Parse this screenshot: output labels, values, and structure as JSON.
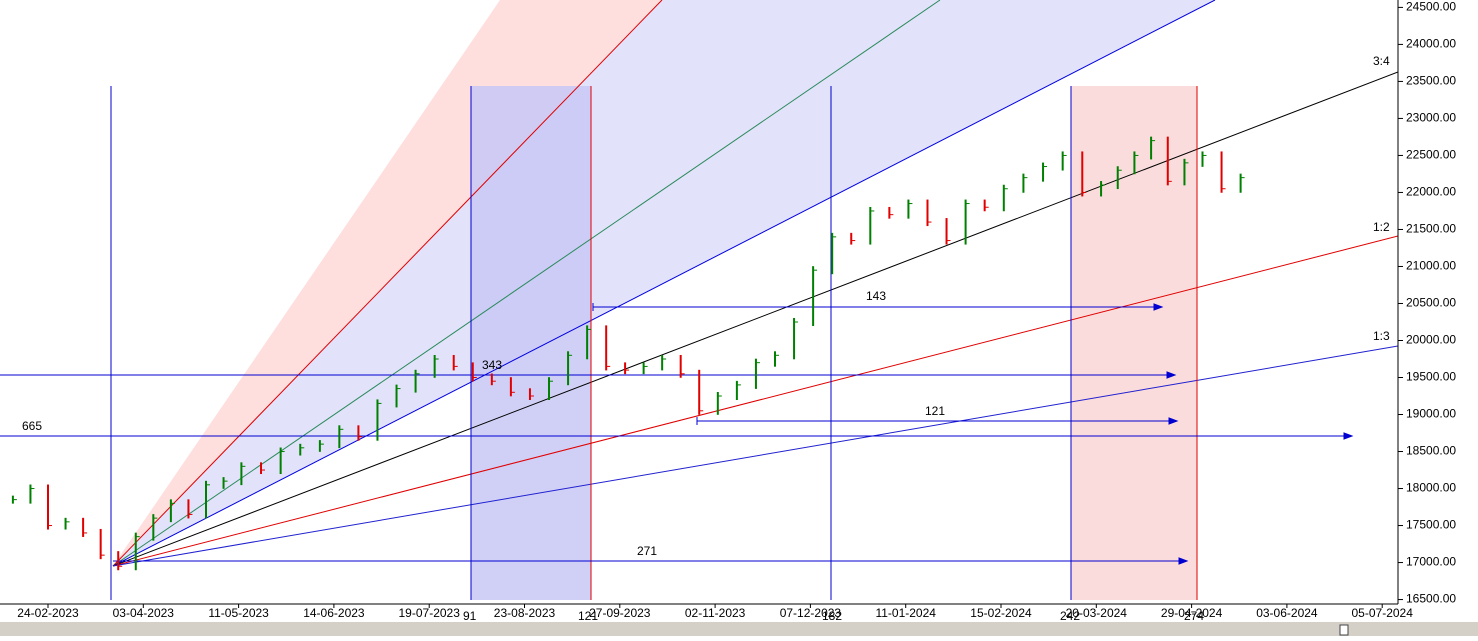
{
  "chart_data": {
    "type": "bar-series",
    "yticks": [
      {
        "value": 16500,
        "label": "16500.00"
      },
      {
        "value": 17000,
        "label": "17000.00"
      },
      {
        "value": 17500,
        "label": "17500.00"
      },
      {
        "value": 18000,
        "label": "18000.00"
      },
      {
        "value": 18500,
        "label": "18500.00"
      },
      {
        "value": 19000,
        "label": "19000.00"
      },
      {
        "value": 19500,
        "label": "19500.00"
      },
      {
        "value": 20000,
        "label": "20000.00"
      },
      {
        "value": 20500,
        "label": "20500.00"
      },
      {
        "value": 21000,
        "label": "21000.00"
      },
      {
        "value": 21500,
        "label": "21500.00"
      },
      {
        "value": 22000,
        "label": "22000.00"
      },
      {
        "value": 22500,
        "label": "22500.00"
      },
      {
        "value": 23000,
        "label": "23000.00"
      },
      {
        "value": 23500,
        "label": "23500.00"
      },
      {
        "value": 24000,
        "label": "24000.00"
      },
      {
        "value": 24500,
        "label": "24500.00"
      }
    ],
    "ylim": [
      16440,
      24600
    ],
    "xticks": [
      "24-02-2023",
      "03-04-2023",
      "11-05-2023",
      "14-06-2023",
      "19-07-2023",
      "23-08-2023",
      "27-09-2023",
      "02-11-2023",
      "07-12-2023",
      "11-01-2024",
      "15-02-2024",
      "20-03-2024",
      "29-04-2024",
      "03-06-2024",
      "05-07-2024"
    ],
    "up_color": "#008000",
    "down_color": "#e00000",
    "x": [
      "10-02-2023",
      "17-02-2023",
      "24-02-2023",
      "03-03-2023",
      "10-03-2023",
      "17-03-2023",
      "24-03-2023",
      "31-03-2023",
      "07-04-2023",
      "14-04-2023",
      "21-04-2023",
      "28-04-2023",
      "05-05-2023",
      "12-05-2023",
      "19-05-2023",
      "26-05-2023",
      "02-06-2023",
      "09-06-2023",
      "16-06-2023",
      "23-06-2023",
      "30-06-2023",
      "07-07-2023",
      "14-07-2023",
      "21-07-2023",
      "28-07-2023",
      "04-08-2023",
      "11-08-2023",
      "18-08-2023",
      "25-08-2023",
      "01-09-2023",
      "08-09-2023",
      "15-09-2023",
      "22-09-2023",
      "29-09-2023",
      "06-10-2023",
      "13-10-2023",
      "20-10-2023",
      "27-10-2023",
      "03-11-2023",
      "10-11-2023",
      "17-11-2023",
      "24-11-2023",
      "01-12-2023",
      "08-12-2023",
      "15-12-2023",
      "22-12-2023",
      "29-12-2023",
      "05-01-2024",
      "12-01-2024",
      "19-01-2024",
      "26-01-2024",
      "02-02-2024",
      "09-02-2024",
      "16-02-2024",
      "23-02-2024",
      "01-03-2024",
      "08-03-2024",
      "15-03-2024",
      "22-03-2024",
      "29-03-2024",
      "05-04-2024",
      "12-04-2024",
      "19-04-2024",
      "26-04-2024",
      "03-05-2024",
      "10-05-2024",
      "17-05-2024"
    ],
    "values": [
      17850,
      18000,
      17500,
      17550,
      17400,
      17100,
      16950,
      17350,
      17600,
      17800,
      17650,
      18050,
      18100,
      18300,
      18250,
      18500,
      18550,
      18600,
      18800,
      18700,
      19150,
      19350,
      19550,
      19750,
      19650,
      19500,
      19450,
      19300,
      19250,
      19450,
      19800,
      20150,
      19650,
      19600,
      19650,
      19750,
      19550,
      19050,
      19250,
      19400,
      19700,
      19800,
      20250,
      20950,
      21400,
      21350,
      21750,
      21700,
      21850,
      21600,
      21350,
      21850,
      21800,
      22050,
      22200,
      22350,
      22500,
      22000,
      22100,
      22300,
      22500,
      22700,
      22150,
      22400,
      22500,
      22050,
      22200
    ],
    "fan_labels": [
      "3:4",
      "1:2",
      "1:3"
    ],
    "annotations": [
      "665",
      "343",
      "143",
      "121",
      "271"
    ],
    "cycle_labels": [
      "91",
      "121",
      "182",
      "242",
      "274"
    ]
  }
}
